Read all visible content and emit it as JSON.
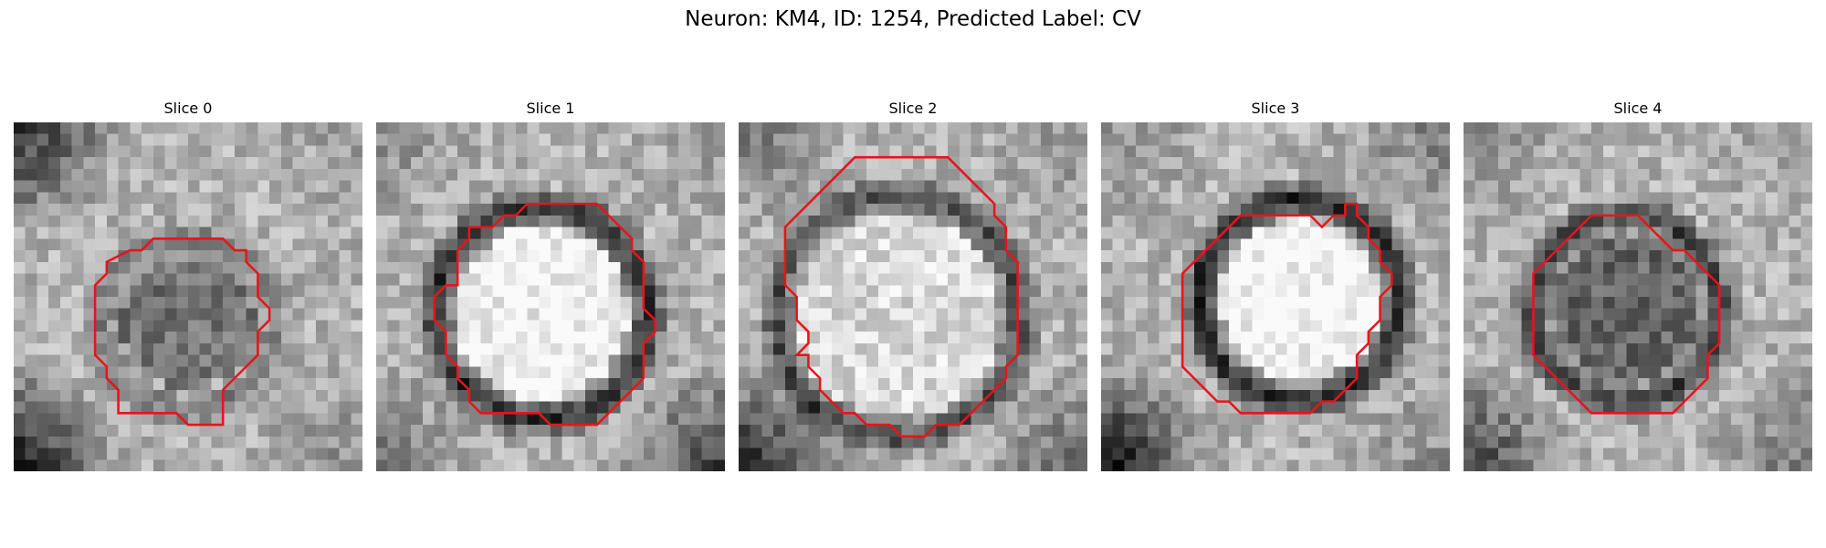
{
  "title": "Neuron: KM4, ID: 1254, Predicted Label: CV",
  "contour_color": "#e8141a",
  "slices": [
    {
      "label": "Slice 0",
      "seed": 11,
      "center_brightness": 0.45,
      "ring_darkness": 0.25,
      "corner_dark": [
        0.7,
        0.1,
        0.2,
        0.8
      ]
    },
    {
      "label": "Slice 1",
      "seed": 23,
      "center_brightness": 0.95,
      "ring_darkness": 0.55,
      "corner_dark": [
        0.2,
        0.1,
        0.6,
        0.3
      ]
    },
    {
      "label": "Slice 2",
      "seed": 37,
      "center_brightness": 0.85,
      "ring_darkness": 0.45,
      "corner_dark": [
        0.3,
        0.2,
        0.4,
        0.7
      ]
    },
    {
      "label": "Slice 3",
      "seed": 41,
      "center_brightness": 0.97,
      "ring_darkness": 0.6,
      "corner_dark": [
        0.2,
        0.3,
        0.2,
        0.9
      ]
    },
    {
      "label": "Slice 4",
      "seed": 53,
      "center_brightness": 0.4,
      "ring_darkness": 0.5,
      "corner_dark": [
        0.2,
        0.1,
        0.3,
        0.6
      ]
    }
  ]
}
